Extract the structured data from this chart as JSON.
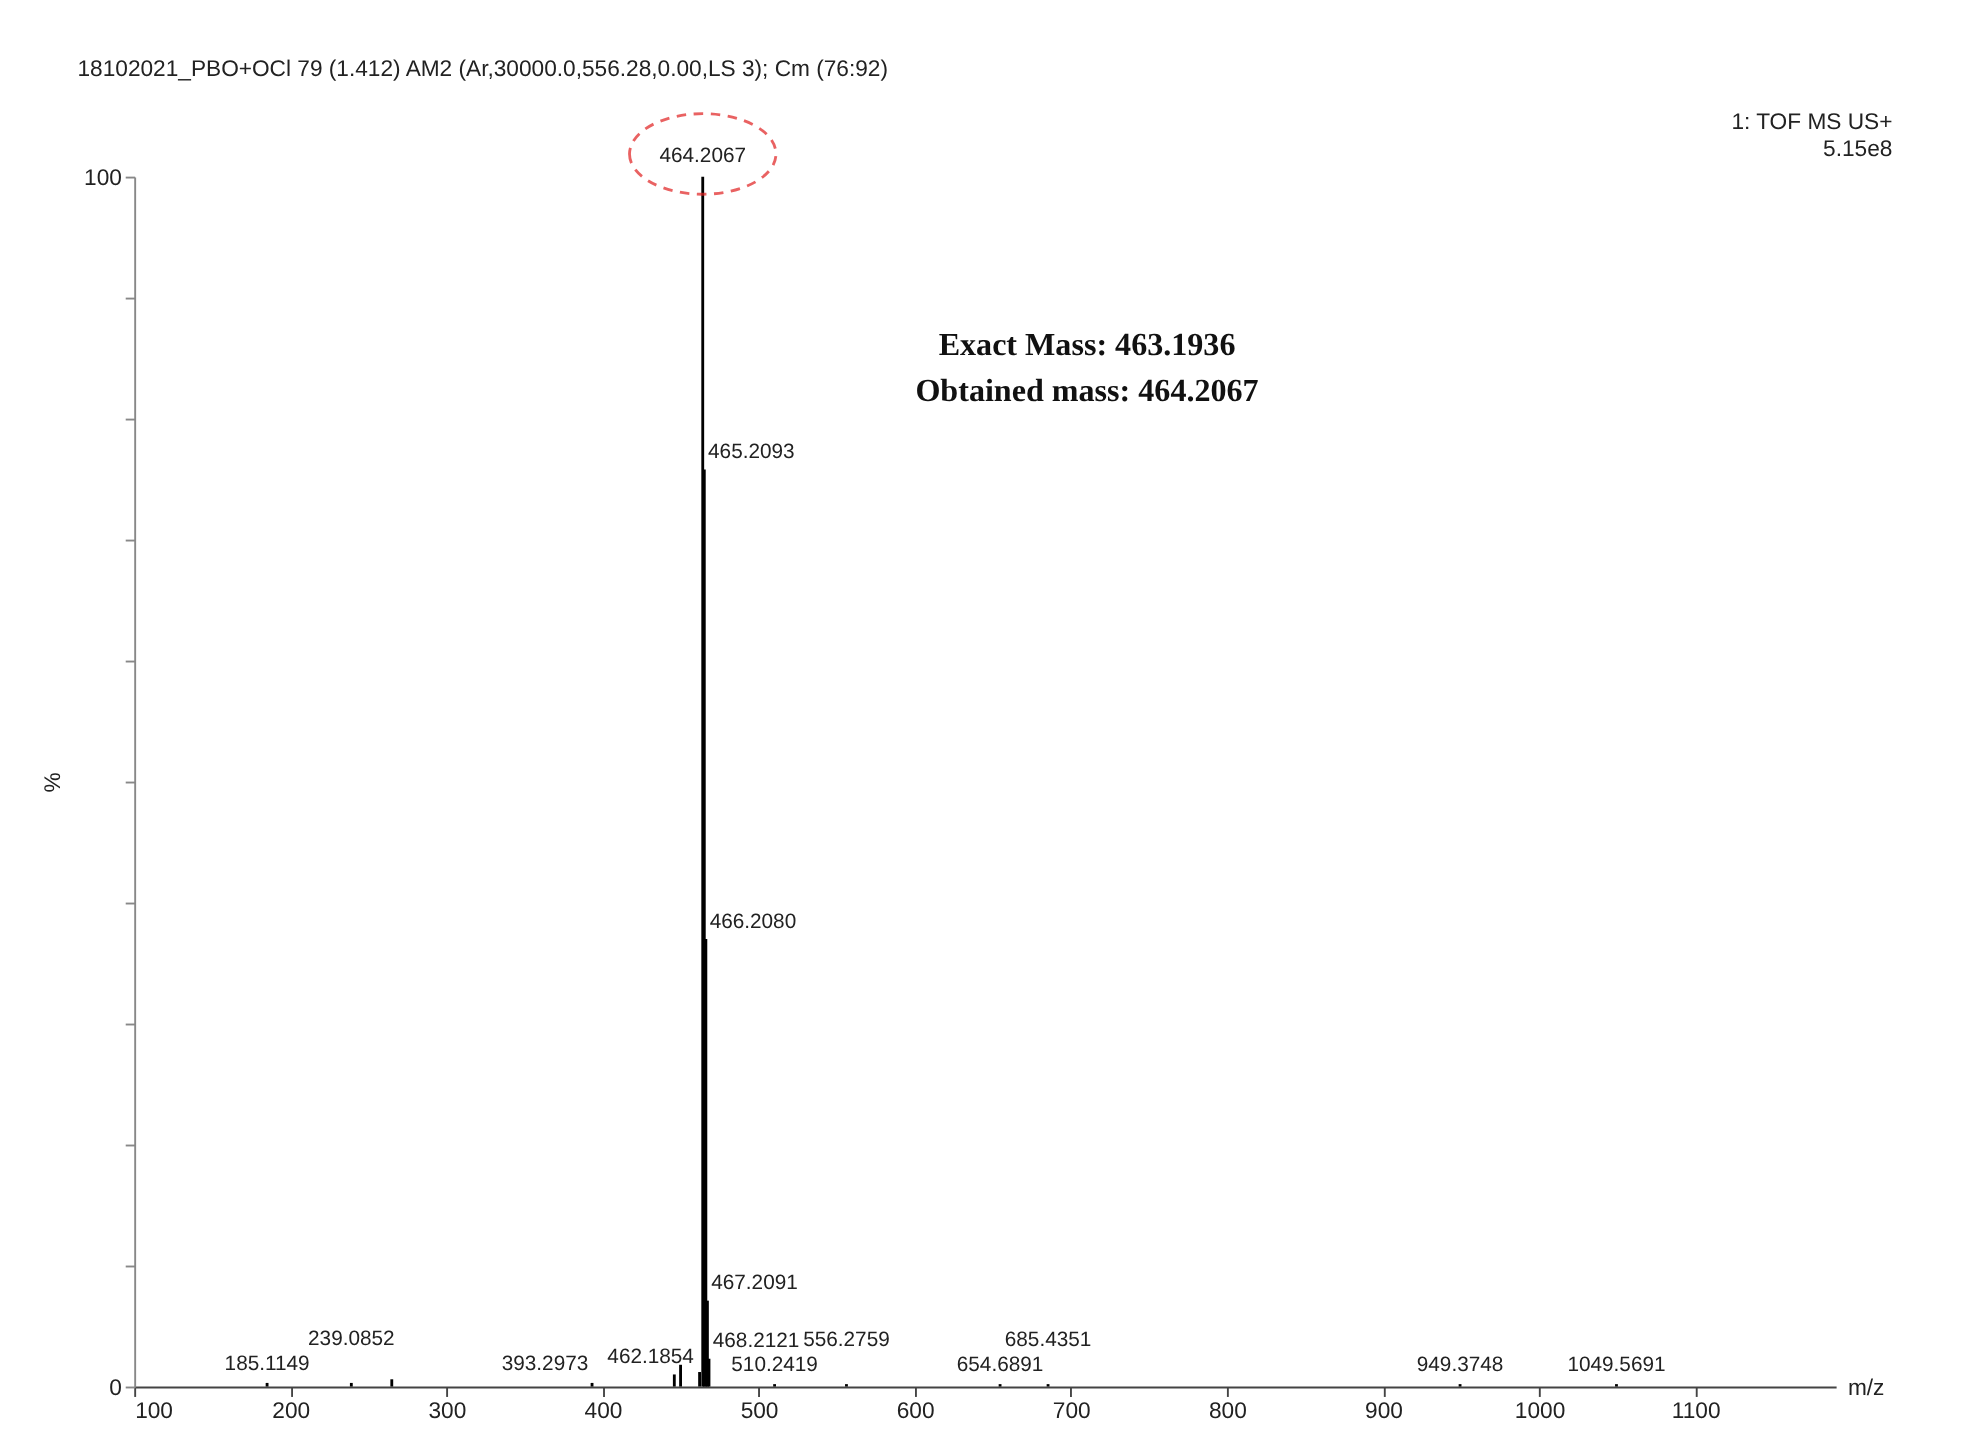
{
  "chart_data": {
    "type": "bar",
    "title": "18102021_PBO+OCl 79 (1.412) AM2 (Ar,30000.0,556.28,0.00,LS 3); Cm (76:92)",
    "xlabel": "m/z",
    "ylabel": "%",
    "annotations": [
      "1: TOF MS US+",
      "5.15e8",
      "Exact Mass: 463.1936",
      "Obtained mass: 464.2067",
      {
        "text": "185.1149",
        "x": 185.1149,
        "y": 0.3
      },
      {
        "text": "239.0852",
        "x": 239.0852,
        "y": 0.3
      },
      {
        "text": "393.2973",
        "x": 393.2973,
        "y": 0.3
      },
      {
        "text": "462.1854",
        "x": 462.1854,
        "y": 1.2
      },
      {
        "text": "464.2067",
        "x": 464.2067,
        "y": 100
      },
      {
        "text": "465.2093",
        "x": 465.2093,
        "y": 75.8
      },
      {
        "text": "466.2080",
        "x": 466.208,
        "y": 37.0
      },
      {
        "text": "467.2091",
        "x": 467.2091,
        "y": 7.1
      },
      {
        "text": "468.2121",
        "x": 468.2121,
        "y": 2.3
      },
      {
        "text": "510.2419",
        "x": 510.2419,
        "y": 0.2
      },
      {
        "text": "556.2759",
        "x": 556.2759,
        "y": 0.2
      },
      {
        "text": "654.6891",
        "x": 654.6891,
        "y": 0.2
      },
      {
        "text": "685.4351",
        "x": 685.4351,
        "y": 0.2
      },
      {
        "text": "949.3748",
        "x": 949.3748,
        "y": 0.2
      },
      {
        "text": "1049.5691",
        "x": 1049.5691,
        "y": 0.2
      }
    ],
    "x": [
      185.1149,
      239.0852,
      265,
      393.2973,
      446,
      450,
      462.1854,
      464.2067,
      465.2093,
      466.208,
      467.2091,
      468.2121,
      510.2419,
      556.2759,
      654.6891,
      685.4351,
      949.3748,
      1049.5691
    ],
    "values": [
      0.3,
      0.3,
      0.6,
      0.3,
      1.0,
      1.8,
      1.2,
      100,
      75.8,
      37.0,
      7.1,
      2.3,
      0.2,
      0.2,
      0.2,
      0.2,
      0.2,
      0.2
    ],
    "color": "#000000",
    "xlim": [
      100,
      1190
    ],
    "xticks": [
      100,
      200,
      300,
      400,
      500,
      600,
      700,
      800,
      900,
      1000,
      1100
    ],
    "ylim": [
      0,
      100
    ],
    "yticks": [
      0,
      {
        "value": 10,
        "label": null
      },
      {
        "value": 20,
        "label": null
      },
      {
        "value": 30,
        "label": null
      },
      {
        "value": 40,
        "label": null
      },
      {
        "value": 50,
        "label": null
      },
      {
        "value": 60,
        "label": null
      },
      {
        "value": 70,
        "label": null
      },
      {
        "value": 80,
        "label": null
      },
      {
        "value": 90,
        "label": null
      },
      100
    ],
    "grid": false
  }
}
